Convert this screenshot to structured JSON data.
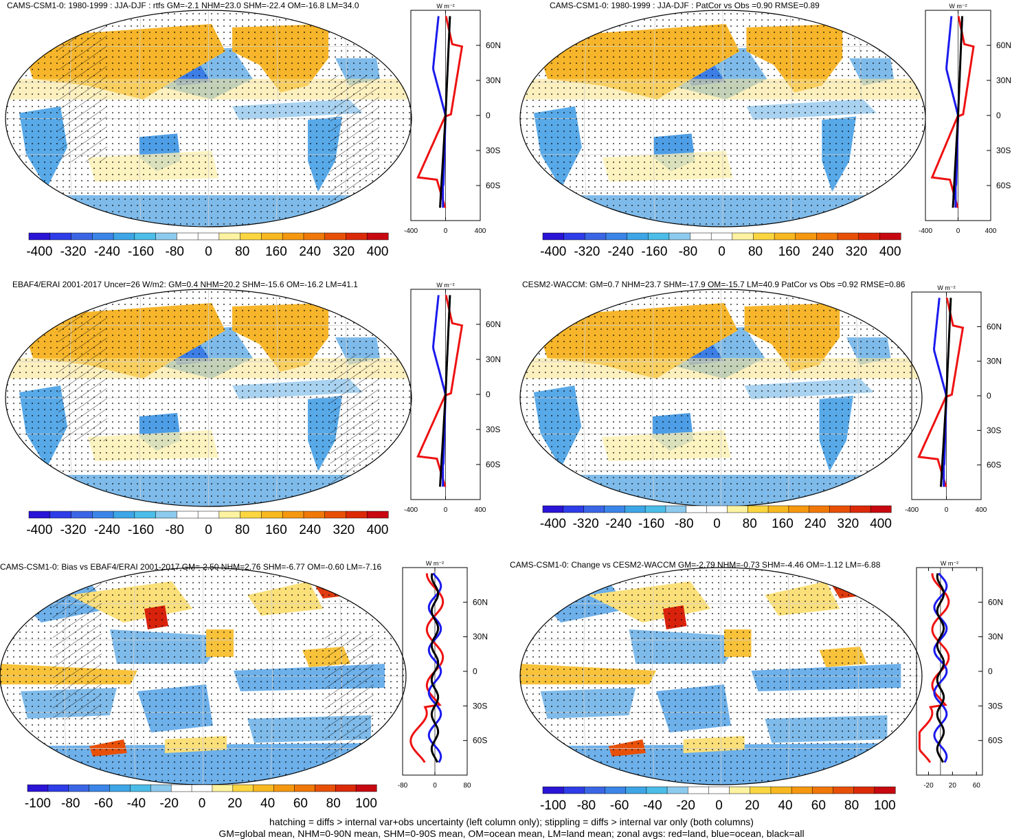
{
  "chart_data": {
    "type": "map-panels",
    "units_label": "W m⁻²",
    "zonal_lat_ticks": [
      "60N",
      "30N",
      "0",
      "30S",
      "60S"
    ],
    "panels": [
      {
        "id": "p1",
        "title": "CAMS-CSM1-0: 1980-1999 : JJA-DJF : rtfs GM=-2.1 NHM=23.0 SHM=-22.4 OM=-16.8 LM=34.0",
        "colorbar_ticks": [
          "-400",
          "-320",
          "-240",
          "-160",
          "-80",
          "0",
          "80",
          "160",
          "240",
          "320",
          "400"
        ],
        "zonal_x_ticks": [
          "-400",
          "0",
          "400"
        ],
        "zonal_xlim": [
          -400,
          400
        ],
        "stats": {
          "GM": -2.1,
          "NHM": 23.0,
          "SHM": -22.4,
          "OM": -16.8,
          "LM": 34.0
        },
        "hatching": true
      },
      {
        "id": "p2",
        "title": "CAMS-CSM1-0: 1980-1999 : JJA-DJF : PatCor vs Obs =0.90 RMSE=0.89",
        "colorbar_ticks": [
          "-400",
          "-320",
          "-240",
          "-160",
          "-80",
          "0",
          "80",
          "160",
          "240",
          "320",
          "400"
        ],
        "zonal_x_ticks": [
          "-400",
          "0",
          "400"
        ],
        "zonal_xlim": [
          -400,
          400
        ],
        "stats": {
          "PatCor": 0.9,
          "RMSE": 0.89
        },
        "hatching": false
      },
      {
        "id": "p3",
        "title": "EBAF4/ERAI 2001-2017 Uncer=26 W/m2: GM=0.4 NHM=20.2 SHM=-15.6 OM=-16.2 LM=41.1",
        "colorbar_ticks": [
          "-400",
          "-320",
          "-240",
          "-160",
          "-80",
          "0",
          "80",
          "160",
          "240",
          "320",
          "400"
        ],
        "zonal_x_ticks": [
          "-400",
          "0",
          "400"
        ],
        "zonal_xlim": [
          -400,
          400
        ],
        "stats": {
          "Uncer": 26,
          "GM": 0.4,
          "NHM": 20.2,
          "SHM": -15.6,
          "OM": -16.2,
          "LM": 41.1
        },
        "hatching": true
      },
      {
        "id": "p4",
        "title": "CESM2-WACCM: GM=0.7 NHM=23.7 SHM=-17.9 OM=-15.7 LM=40.9 PatCor vs Obs =0.92 RMSE=0.86",
        "colorbar_ticks": [
          "-400",
          "-320",
          "-240",
          "-160",
          "-80",
          "0",
          "80",
          "160",
          "240",
          "320",
          "400"
        ],
        "zonal_x_ticks": [
          "-400",
          "0",
          "400"
        ],
        "zonal_xlim": [
          -400,
          400
        ],
        "stats": {
          "GM": 0.7,
          "NHM": 23.7,
          "SHM": -17.9,
          "OM": -15.7,
          "LM": 40.9,
          "PatCor": 0.92,
          "RMSE": 0.86
        },
        "hatching": false
      },
      {
        "id": "p5",
        "title": "CAMS-CSM1-0: Bias vs EBAF4/ERAI 2001-2017 GM=-2.50 NHM=2.76 SHM=-6.77 OM=-0.60 LM=-7.16",
        "colorbar_ticks": [
          "-100",
          "-80",
          "-60",
          "-40",
          "-20",
          "0",
          "20",
          "40",
          "60",
          "80",
          "100"
        ],
        "zonal_x_ticks": [
          "-80",
          "0",
          "80"
        ],
        "zonal_xlim": [
          -80,
          80
        ],
        "stats": {
          "GM": -2.5,
          "NHM": 2.76,
          "SHM": -6.77,
          "OM": -0.6,
          "LM": -7.16
        },
        "hatching": true
      },
      {
        "id": "p6",
        "title": "CAMS-CSM1-0: Change vs CESM2-WACCM GM=-2.79 NHM=-0.73 SHM=-4.46 OM=-1.12 LM=-6.88",
        "colorbar_ticks": [
          "-20",
          "0",
          "20",
          "40",
          "60",
          "80",
          "100",
          "-100",
          "-80",
          "-60",
          "-40"
        ],
        "colorbar_ticks_ordered": [
          "-100",
          "-80",
          "-60",
          "-40",
          "-20",
          "0",
          "20",
          "40",
          "60",
          "80",
          "100"
        ],
        "zonal_x_ticks": [
          "-20",
          "20",
          "60"
        ],
        "zonal_xlim": [
          -40,
          70
        ],
        "stats": {
          "GM": -2.79,
          "NHM": -0.73,
          "SHM": -4.46,
          "OM": -1.12,
          "LM": -6.88
        },
        "hatching": false
      }
    ],
    "zonal_series": [
      "land",
      "ocean",
      "all"
    ],
    "series_colors": {
      "land": "#ee1111",
      "ocean": "#1a1aee",
      "all": "#000000"
    },
    "colorbar_colors": [
      "#2a14d6",
      "#2e3de8",
      "#3a66e6",
      "#3b85e8",
      "#3ea6e6",
      "#4bbde8",
      "#8ccbee",
      "#ffffff",
      "#ffffff",
      "#fdf3a0",
      "#fbd640",
      "#f8b820",
      "#f59810",
      "#f07808",
      "#e85008",
      "#dc2a08",
      "#c80810"
    ]
  },
  "footer": {
    "line1": "hatching = diffs > internal var+obs uncertainty (left column only); stippling = diffs > internal var only (both columns)",
    "line2": "GM=global mean, NHM=0-90N mean, SHM=0-90S mean, OM=ocean mean, LM=land mean; zonal avgs: red=land, blue=ocean, black=all"
  }
}
